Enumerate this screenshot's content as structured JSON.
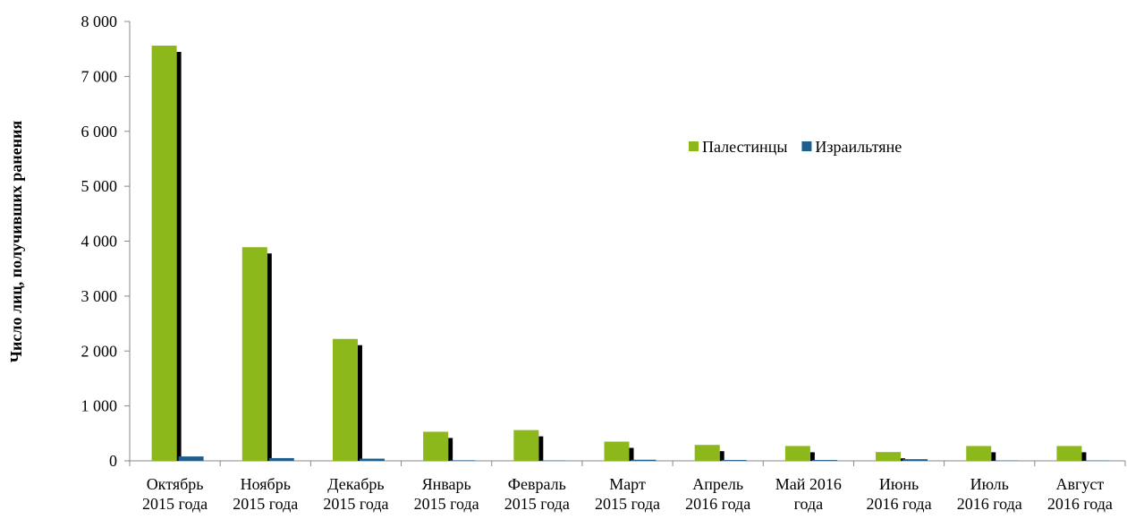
{
  "chart_data": {
    "type": "bar",
    "y_label": "Число лиц, получивших ранения",
    "categories": [
      [
        "Октябрь",
        "2015 года"
      ],
      [
        "Ноябрь",
        "2015 года"
      ],
      [
        "Декабрь",
        "2015 года"
      ],
      [
        "Январь",
        "2015 года"
      ],
      [
        "Февраль",
        "2015 года"
      ],
      [
        "Март",
        "2015 года"
      ],
      [
        "Апрель",
        "2016 года"
      ],
      [
        "Май 2016",
        "года"
      ],
      [
        "Июнь",
        "2016 года"
      ],
      [
        "Июль",
        "2016 года"
      ],
      [
        "Август",
        "2016 года"
      ]
    ],
    "series": [
      {
        "name": "Палестинцы",
        "color": "#8db81c",
        "values": [
          7560,
          3890,
          2220,
          530,
          560,
          350,
          290,
          270,
          160,
          270,
          270
        ]
      },
      {
        "name": "Израильтяне",
        "color": "#1f5f8b",
        "values": [
          80,
          50,
          40,
          10,
          5,
          20,
          15,
          15,
          30,
          5,
          5
        ]
      }
    ],
    "ylim": [
      0,
      8000
    ],
    "yticks": [
      0,
      {
        "value": 1000,
        "label": "1 000"
      },
      {
        "value": 2000,
        "label": "2 000"
      },
      {
        "value": 3000,
        "label": "3 000"
      },
      {
        "value": 4000,
        "label": "4 000"
      },
      {
        "value": 5000,
        "label": "5 000"
      },
      {
        "value": 6000,
        "label": "6 000"
      },
      {
        "value": 7000,
        "label": "7 000"
      },
      {
        "value": 8000,
        "label": "8 000"
      }
    ],
    "legend": "upper right"
  }
}
